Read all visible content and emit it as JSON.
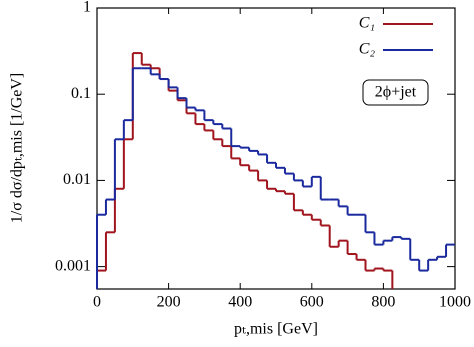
{
  "chart_data": {
    "type": "histogram",
    "xlabel": "pₜ,mis [GeV]",
    "ylabel": "1/σ dσ/dpₜ,mis [1/GeV]",
    "annotation": "2ϕ+jet",
    "ylog": true,
    "legend": "top-right",
    "bins": [
      0,
      25,
      50,
      75,
      100,
      125,
      150,
      175,
      200,
      225,
      250,
      275,
      300,
      325,
      350,
      375,
      400,
      425,
      450,
      475,
      500,
      525,
      550,
      575,
      600,
      625,
      650,
      675,
      700,
      725,
      750,
      775,
      800,
      825,
      850,
      875,
      900,
      925,
      950,
      975,
      1000
    ],
    "series": [
      {
        "name": "C₁",
        "color": "#a0141e",
        "values": [
          0.0009,
          0.0025,
          0.008,
          0.03,
          0.3,
          0.22,
          0.2,
          0.15,
          0.11,
          0.085,
          0.06,
          0.045,
          0.038,
          0.03,
          0.025,
          0.018,
          0.015,
          0.013,
          0.01,
          0.008,
          0.0075,
          0.007,
          0.0045,
          0.004,
          0.0035,
          0.003,
          0.0017,
          0.002,
          0.0014,
          0.0012,
          0.0009,
          0.00095,
          0.0009,
          null,
          null,
          null,
          null,
          null,
          null,
          null
        ]
      },
      {
        "name": "C₂",
        "color": "#1a2a9e",
        "values": [
          0.004,
          0.006,
          0.03,
          0.05,
          0.2,
          0.2,
          0.17,
          0.15,
          0.12,
          0.09,
          0.07,
          0.065,
          0.05,
          0.045,
          0.04,
          0.025,
          0.024,
          0.022,
          0.02,
          0.016,
          0.014,
          0.012,
          0.01,
          0.0085,
          0.011,
          0.006,
          0.006,
          0.005,
          0.004,
          0.004,
          0.0025,
          0.0018,
          0.002,
          0.0022,
          0.0021,
          0.0012,
          0.0009,
          0.0012,
          0.0013,
          0.0018
        ]
      }
    ],
    "xlim": [
      0,
      1000
    ],
    "xticks": [
      0,
      200,
      400,
      600,
      800,
      1000
    ],
    "ylim": [
      0.00055,
      1
    ],
    "yticks": [
      0.001,
      0.01,
      0.1,
      1
    ]
  }
}
